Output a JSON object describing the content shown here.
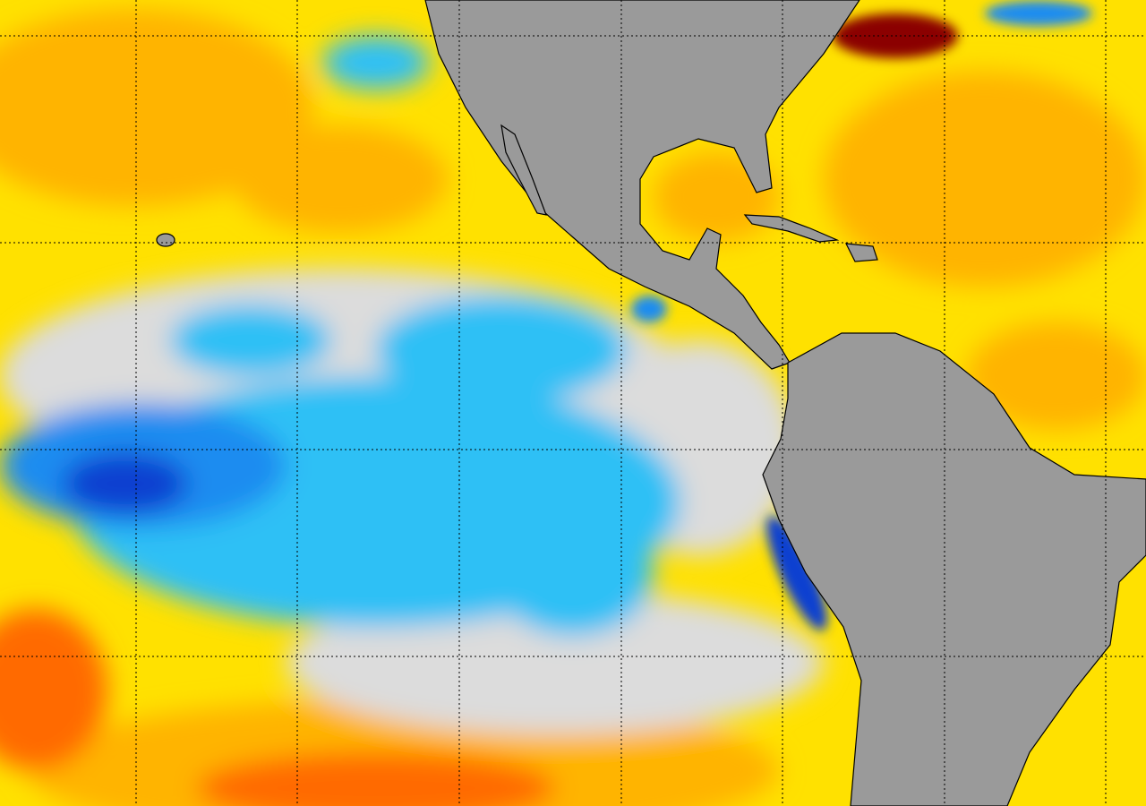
{
  "map": {
    "colors": {
      "land": "#9a9a9a",
      "coastline": "#000000",
      "gridline": "#000000",
      "near_zero": "#dcdcdc",
      "warm_weak": "#ffe100",
      "warm_mid": "#ffb400",
      "warm_strong": "#ff6a00",
      "warm_extreme": "#8b0000",
      "cool_weak": "#2ec0f5",
      "cool_mid": "#1e8cf0",
      "cool_strong": "#1040d0"
    },
    "gridlines": true
  }
}
